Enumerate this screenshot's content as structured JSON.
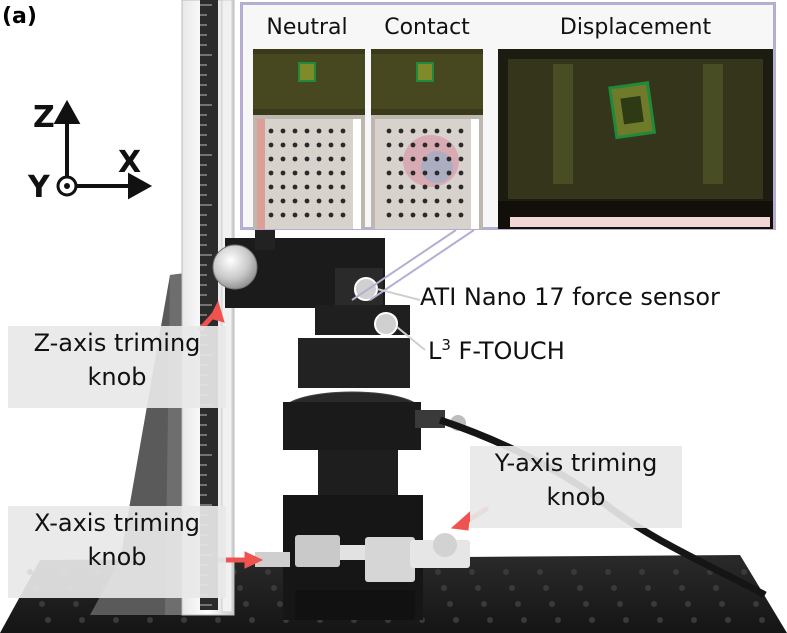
{
  "panel_label": "(a)",
  "inset": {
    "titles": [
      "Neutral",
      "Contact",
      "Displacement"
    ]
  },
  "axes": {
    "z": "Z",
    "x": "X",
    "y": "Y"
  },
  "labels": {
    "z_knob": [
      "Z-axis triming",
      "knob"
    ],
    "x_knob": [
      "X-axis triming",
      "knob"
    ],
    "y_knob": [
      "Y-axis triming",
      "knob"
    ],
    "force_sensor": "ATI Nano 17 force sensor",
    "ftouch_prefix": "L",
    "ftouch_sup": "3",
    "ftouch_suffix": " F-TOUCH"
  },
  "colors": {
    "arrow": "#ef5350",
    "inset_border": "#b6aed0",
    "label_bg": "#e8e8e8"
  }
}
